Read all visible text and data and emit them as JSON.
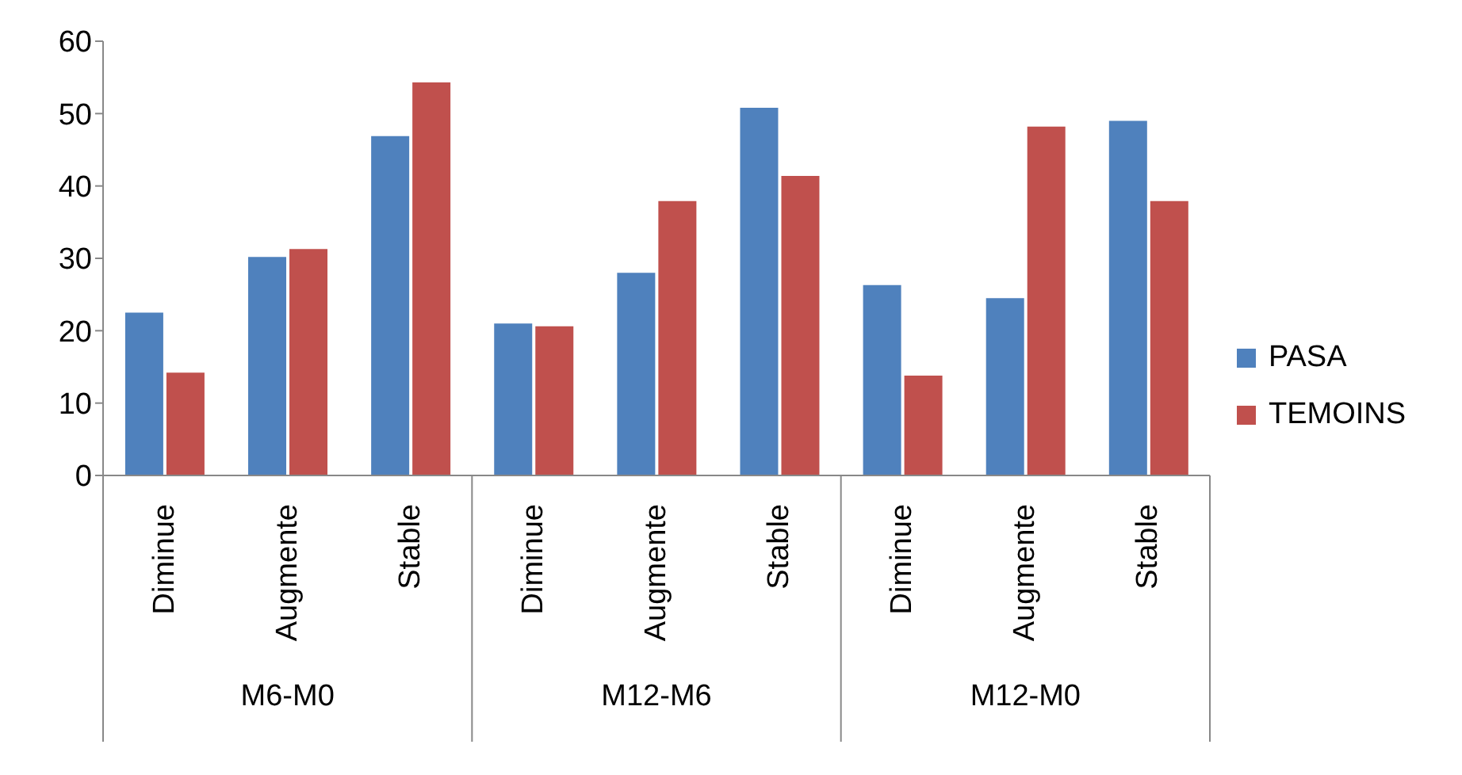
{
  "chart_data": {
    "type": "bar",
    "categories": [
      "Diminue",
      "Augmente",
      "Stable",
      "Diminue",
      "Augmente",
      "Stable",
      "Diminue",
      "Augmente",
      "Stable"
    ],
    "series": [
      {
        "name": "PASA",
        "color": "#4f81bd",
        "values": [
          22.5,
          30.2,
          46.9,
          21.0,
          28.0,
          50.8,
          26.3,
          24.5,
          49.0
        ]
      },
      {
        "name": "TEMOINS",
        "color": "#c0504d",
        "values": [
          14.2,
          31.3,
          54.3,
          20.6,
          37.9,
          41.4,
          13.8,
          48.2,
          37.9
        ]
      }
    ],
    "annotations": [
      "M6-M0",
      "M12-M6",
      "M12-M0"
    ],
    "ylim": [
      0,
      60
    ],
    "yticks": [
      0,
      10,
      20,
      30,
      40,
      50,
      60
    ],
    "legend": "right"
  }
}
